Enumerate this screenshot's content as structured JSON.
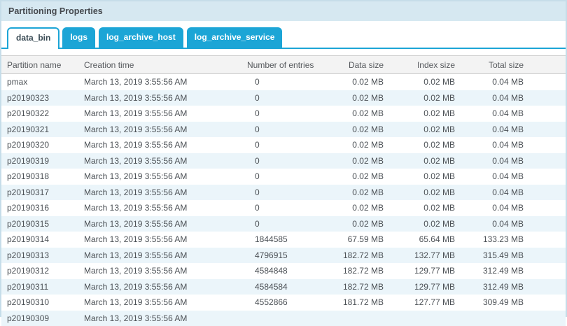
{
  "panel": {
    "title": "Partitioning Properties"
  },
  "tabs": [
    {
      "label": "data_bin",
      "active": true
    },
    {
      "label": "logs",
      "active": false
    },
    {
      "label": "log_archive_host",
      "active": false
    },
    {
      "label": "log_archive_service",
      "active": false
    }
  ],
  "table": {
    "columns": [
      "Partition name",
      "Creation time",
      "Number of entries",
      "Data size",
      "Index size",
      "Total size"
    ],
    "rows": [
      [
        "pmax",
        "March 13, 2019 3:55:56 AM",
        "0",
        "0.02 MB",
        "0.02 MB",
        "0.04 MB"
      ],
      [
        "p20190323",
        "March 13, 2019 3:55:56 AM",
        "0",
        "0.02 MB",
        "0.02 MB",
        "0.04 MB"
      ],
      [
        "p20190322",
        "March 13, 2019 3:55:56 AM",
        "0",
        "0.02 MB",
        "0.02 MB",
        "0.04 MB"
      ],
      [
        "p20190321",
        "March 13, 2019 3:55:56 AM",
        "0",
        "0.02 MB",
        "0.02 MB",
        "0.04 MB"
      ],
      [
        "p20190320",
        "March 13, 2019 3:55:56 AM",
        "0",
        "0.02 MB",
        "0.02 MB",
        "0.04 MB"
      ],
      [
        "p20190319",
        "March 13, 2019 3:55:56 AM",
        "0",
        "0.02 MB",
        "0.02 MB",
        "0.04 MB"
      ],
      [
        "p20190318",
        "March 13, 2019 3:55:56 AM",
        "0",
        "0.02 MB",
        "0.02 MB",
        "0.04 MB"
      ],
      [
        "p20190317",
        "March 13, 2019 3:55:56 AM",
        "0",
        "0.02 MB",
        "0.02 MB",
        "0.04 MB"
      ],
      [
        "p20190316",
        "March 13, 2019 3:55:56 AM",
        "0",
        "0.02 MB",
        "0.02 MB",
        "0.04 MB"
      ],
      [
        "p20190315",
        "March 13, 2019 3:55:56 AM",
        "0",
        "0.02 MB",
        "0.02 MB",
        "0.04 MB"
      ],
      [
        "p20190314",
        "March 13, 2019 3:55:56 AM",
        "1844585",
        "67.59 MB",
        "65.64 MB",
        "133.23 MB"
      ],
      [
        "p20190313",
        "March 13, 2019 3:55:56 AM",
        "4796915",
        "182.72 MB",
        "132.77 MB",
        "315.49 MB"
      ],
      [
        "p20190312",
        "March 13, 2019 3:55:56 AM",
        "4584848",
        "182.72 MB",
        "129.77 MB",
        "312.49 MB"
      ],
      [
        "p20190311",
        "March 13, 2019 3:55:56 AM",
        "4584584",
        "182.72 MB",
        "129.77 MB",
        "312.49 MB"
      ],
      [
        "p20190310",
        "March 13, 2019 3:55:56 AM",
        "4552866",
        "181.72 MB",
        "127.77 MB",
        "309.49 MB"
      ]
    ],
    "partial_bottom_row": [
      "p20190309",
      "March 13, 2019 3:55:56 AM",
      "",
      "",
      "",
      ""
    ]
  },
  "colors": {
    "accent_blue": "#1ca5d6",
    "titlebar_bg": "#d6e8f1",
    "panel_border": "#c6dde9",
    "header_bg": "#f3f3f3",
    "row_alt_bg": "#ebf5fa",
    "text": "#4c5156"
  }
}
